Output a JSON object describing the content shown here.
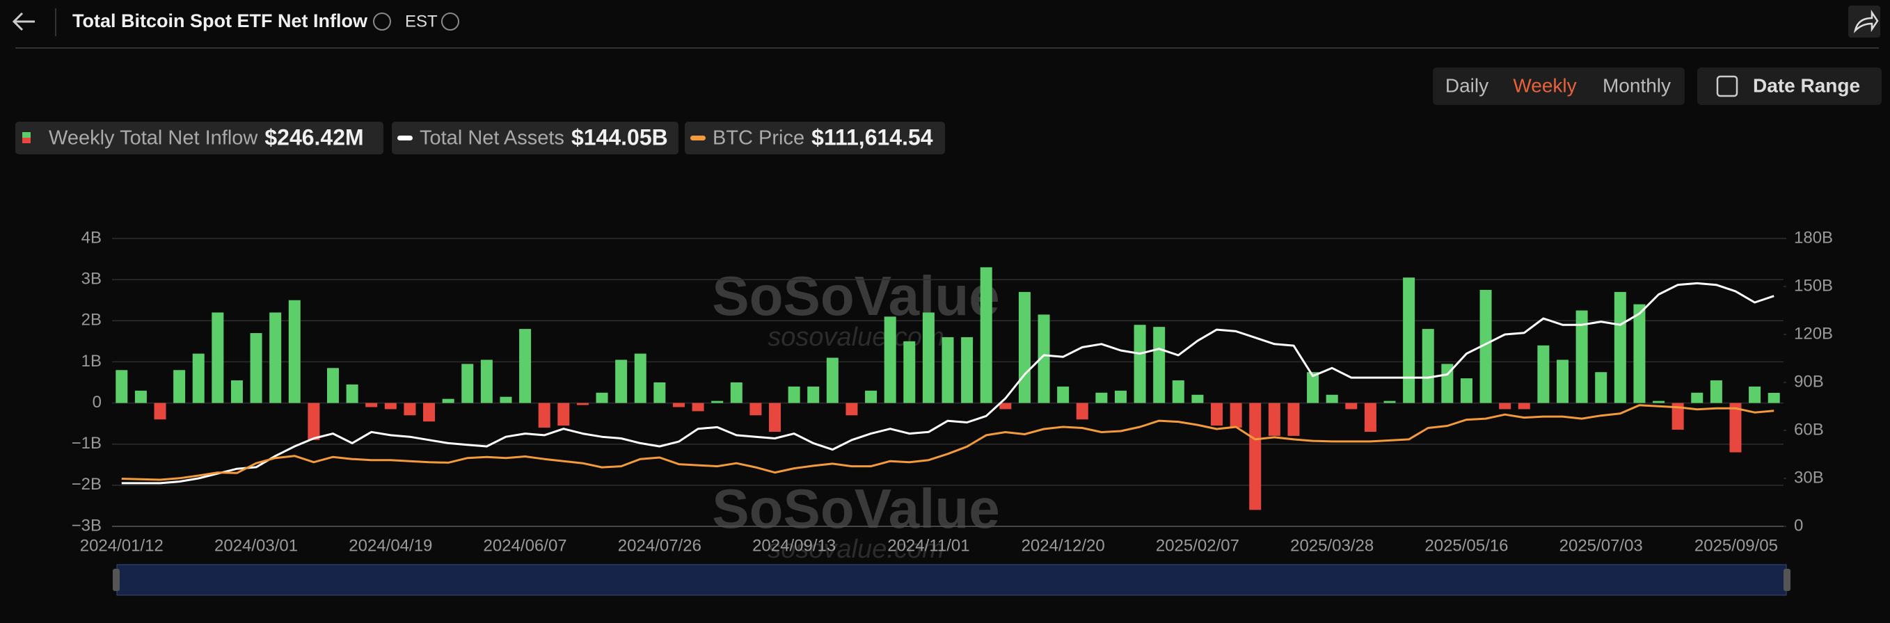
{
  "header": {
    "title": "Total Bitcoin Spot ETF Net Inflow",
    "timezone": "EST"
  },
  "controls": {
    "periods": [
      "Daily",
      "Weekly",
      "Monthly"
    ],
    "active": "Weekly",
    "date_range": "Date Range"
  },
  "legend_values": [
    "$246.42M",
    "$144.05B",
    "$111,614.54"
  ],
  "watermark": "SoSoValue",
  "watermark_url": "sosovalue.com",
  "chart_data": {
    "type": "bar-line",
    "categories": [
      "2024/01/12",
      null,
      null,
      null,
      null,
      null,
      null,
      "2024/03/01",
      null,
      null,
      null,
      null,
      null,
      null,
      "2024/04/19",
      null,
      null,
      null,
      null,
      null,
      null,
      "2024/06/07",
      null,
      null,
      null,
      null,
      null,
      null,
      "2024/07/26",
      null,
      null,
      null,
      null,
      null,
      null,
      "2024/09/13",
      null,
      null,
      null,
      null,
      null,
      null,
      "2024/11/01",
      null,
      null,
      null,
      null,
      null,
      null,
      "2024/12/20",
      null,
      null,
      null,
      null,
      null,
      null,
      "2025/02/07",
      null,
      null,
      null,
      null,
      null,
      null,
      "2025/03/28",
      null,
      null,
      null,
      null,
      null,
      null,
      "2025/05/16",
      null,
      null,
      null,
      null,
      null,
      null,
      "2025/07/03",
      null,
      null,
      null,
      null,
      null,
      null,
      null,
      null,
      "2025/09/05"
    ],
    "series": [
      {
        "name": "Weekly Total Net Inflow",
        "color": "#5ccf6a",
        "negative_color": "#e8473d",
        "values": [
          0.8,
          0.3,
          -0.4,
          0.8,
          1.2,
          2.2,
          0.55,
          1.7,
          2.2,
          2.5,
          -0.9,
          0.85,
          0.45,
          -0.1,
          -0.15,
          -0.3,
          -0.45,
          0.1,
          0.95,
          1.05,
          0.15,
          1.8,
          -0.6,
          -0.55,
          -0.05,
          0.25,
          1.05,
          1.2,
          0.5,
          -0.1,
          -0.2,
          0.05,
          0.5,
          -0.3,
          -0.7,
          0.4,
          0.4,
          1.1,
          -0.3,
          0.3,
          2.1,
          1.5,
          2.2,
          1.6,
          1.6,
          3.3,
          -0.15,
          2.7,
          2.15,
          0.4,
          -0.4,
          0.25,
          0.3,
          1.9,
          1.85,
          0.55,
          0.2,
          -0.55,
          -0.6,
          -2.6,
          -0.8,
          -0.8,
          0.75,
          0.2,
          -0.15,
          -0.7,
          0.05,
          3.05,
          1.8,
          0.95,
          0.6,
          2.75,
          -0.15,
          -0.15,
          1.4,
          1.05,
          2.25,
          0.75,
          2.7,
          2.4,
          0.05,
          -0.65,
          0.25,
          0.55,
          -1.2,
          0.4,
          0.24642
        ]
      },
      {
        "name": "Total Net Assets",
        "color": "#ffffff",
        "axis": "y2",
        "values": [
          27,
          27,
          27,
          28,
          30,
          33,
          36,
          37,
          44,
          50,
          55,
          58,
          52,
          59,
          57,
          56,
          54,
          52,
          51,
          50,
          56,
          58,
          57,
          61,
          58,
          56,
          55,
          52,
          50,
          53,
          61,
          62,
          57,
          56,
          55,
          58,
          52,
          48,
          54,
          58,
          61,
          58,
          59,
          66,
          65,
          69,
          80,
          95,
          107,
          106,
          112,
          114,
          110,
          108,
          111,
          107,
          116,
          123,
          122,
          118,
          114,
          113,
          94,
          99,
          93,
          93,
          93,
          93,
          93,
          95,
          108,
          114,
          120,
          121,
          130,
          126,
          126,
          128,
          126,
          133,
          145,
          151,
          152,
          151,
          147,
          140,
          144.05
        ]
      },
      {
        "name": "BTC Price",
        "color": "#f39a3a",
        "axis": "price",
        "values": [
          46000,
          45500,
          45000,
          46500,
          49000,
          52000,
          51500,
          61000,
          66000,
          68000,
          62000,
          67000,
          65000,
          64000,
          64000,
          63000,
          62000,
          61500,
          66000,
          67000,
          66000,
          67500,
          65000,
          63000,
          61000,
          57000,
          58000,
          65000,
          66500,
          60000,
          59000,
          58000,
          61000,
          57000,
          52000,
          56000,
          58500,
          60500,
          58000,
          58000,
          63000,
          62000,
          64000,
          70000,
          77000,
          88000,
          91000,
          89000,
          94000,
          96000,
          95000,
          91000,
          92000,
          96000,
          102000,
          101000,
          98000,
          94000,
          96000,
          84000,
          86000,
          84000,
          82500,
          82000,
          82000,
          82000,
          83000,
          84000,
          95000,
          97000,
          103000,
          104000,
          108000,
          105000,
          106000,
          106000,
          104000,
          107000,
          109000,
          117000,
          116000,
          115000,
          113000,
          114000,
          114000,
          110000,
          111614.54
        ]
      }
    ],
    "ylim": [
      -3,
      4
    ],
    "yticks": [
      {
        "value": 4,
        "label": "4B"
      },
      {
        "value": 3,
        "label": "3B"
      },
      {
        "value": 2,
        "label": "2B"
      },
      {
        "value": 1,
        "label": "1B"
      },
      0,
      {
        "value": -1,
        "label": "−1B"
      },
      {
        "value": -2,
        "label": "−2B"
      },
      {
        "value": -3,
        "label": "−3B"
      }
    ],
    "y2lim": [
      0,
      180
    ],
    "y2ticks": [
      {
        "value": 180,
        "label": "180B"
      },
      {
        "value": 150,
        "label": "150B"
      },
      {
        "value": 120,
        "label": "120B"
      },
      {
        "value": 90,
        "label": "90B"
      },
      {
        "value": 60,
        "label": "60B"
      },
      {
        "value": 30,
        "label": "30B"
      },
      0
    ],
    "price_ylim": [
      0,
      278000
    ],
    "grid": true
  }
}
